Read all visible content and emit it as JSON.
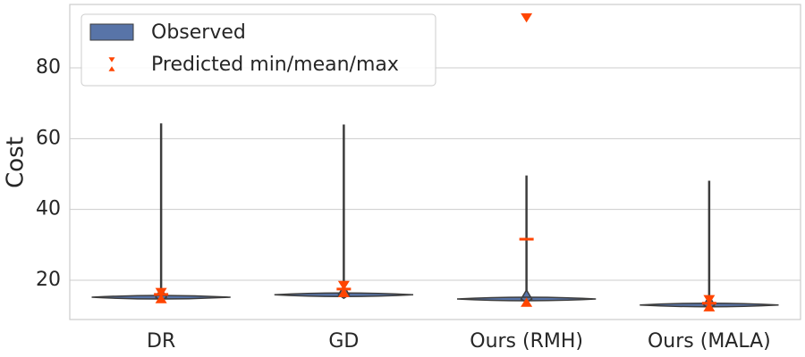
{
  "chart_data": {
    "type": "violin",
    "y_label": "Cost",
    "categories": [
      "DR",
      "GD",
      "Ours (RMH)",
      "Ours (MALA)"
    ],
    "ylim": [
      8.9,
      97.9
    ],
    "yticks": [
      20,
      40,
      60,
      80
    ],
    "grid": true,
    "legend": "upper left",
    "observed": {
      "name": "Observed",
      "color": "#5874a8",
      "min": [
        14.9,
        15.5,
        14.3,
        12.7
      ],
      "median": [
        15.2,
        15.9,
        14.7,
        13.0
      ],
      "max": [
        64.3,
        64.0,
        49.6,
        48.1
      ]
    },
    "predicted": {
      "name": "Predicted min/mean/max",
      "color": "#ff4500",
      "min": [
        14.8,
        16.5,
        13.8,
        12.5
      ],
      "mean": [
        16.0,
        17.5,
        31.6,
        13.5
      ],
      "max": [
        16.5,
        18.5,
        94.1,
        14.5
      ]
    }
  }
}
